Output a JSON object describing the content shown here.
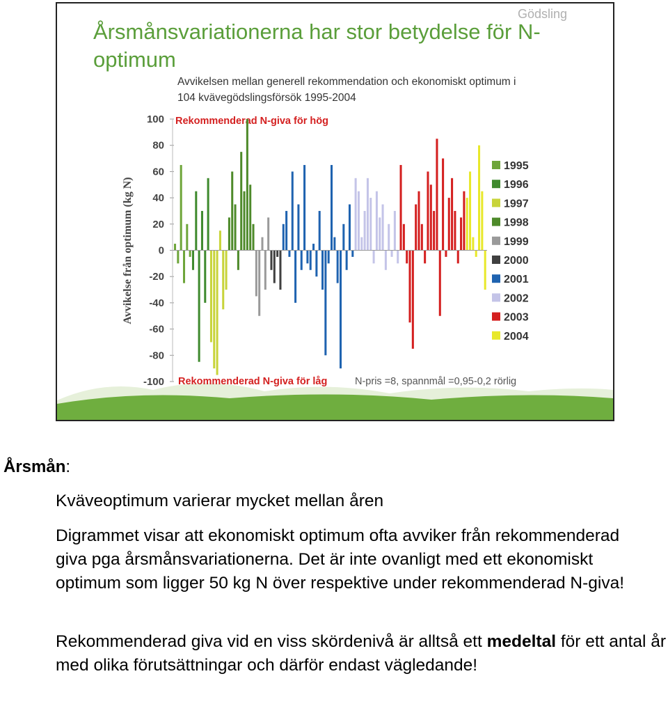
{
  "header": "Gödsling",
  "chart_data": {
    "type": "bar",
    "title": "Årsmånsvariationerna har stor betydelse för N-optimum",
    "subtitle": "Avvikelsen mellan generell rekommendation och ekonomiskt optimum i 104 kvävegödslingsförsök 1995-2004",
    "y_label": "Avvikelse från optimum (kg N)",
    "annotations": [
      "Rekommenderad N-giva för hög",
      "Rekommenderad N-giva för låg",
      "N-pris =8, spannmål =0,95-0,2 rörlig"
    ],
    "ylim": [
      -100,
      100
    ],
    "yticks": [
      -100,
      -80,
      -60,
      -40,
      -20,
      0,
      20,
      40,
      60,
      80,
      100
    ],
    "series": [
      {
        "name": "1995",
        "color": "#6ea53a",
        "values": [
          5,
          -10,
          65,
          -25,
          20,
          -5
        ]
      },
      {
        "name": "1996",
        "color": "#3f8a2e",
        "values": [
          -15,
          45,
          -85,
          30,
          -40,
          55
        ]
      },
      {
        "name": "1997",
        "color": "#c8d43a",
        "values": [
          -70,
          -90,
          -95,
          15,
          -45,
          -30
        ]
      },
      {
        "name": "1998",
        "color": "#4e8a2a",
        "values": [
          25,
          60,
          35,
          -15,
          75,
          45,
          100,
          50,
          20
        ]
      },
      {
        "name": "1999",
        "color": "#9a9a9a",
        "values": [
          -35,
          -50,
          10,
          -30,
          25
        ]
      },
      {
        "name": "2000",
        "color": "#404040",
        "values": [
          -15,
          -25,
          -5,
          -30
        ]
      },
      {
        "name": "2001",
        "color": "#1f63b0",
        "values": [
          20,
          30,
          -5,
          60,
          -40,
          35,
          -15,
          65,
          -10,
          -15,
          5,
          -20,
          30,
          -30,
          -80,
          -10,
          65,
          10,
          -25,
          -90,
          20,
          -15,
          35,
          -5
        ]
      },
      {
        "name": "2002",
        "color": "#c4c4e8",
        "values": [
          55,
          45,
          10,
          30,
          55,
          40,
          -10,
          45,
          25,
          35,
          -15,
          20,
          -5,
          30,
          -10
        ]
      },
      {
        "name": "2003",
        "color": "#d41f1f",
        "values": [
          65,
          20,
          -10,
          -55,
          -75,
          35,
          45,
          20,
          -10,
          60,
          50,
          30,
          85,
          -50,
          70,
          -5,
          40,
          55,
          30,
          -10,
          25,
          45
        ]
      },
      {
        "name": "2004",
        "color": "#e8e82a",
        "values": [
          40,
          60,
          10,
          -5,
          80,
          45,
          -30
        ]
      }
    ]
  },
  "notes": {
    "heading": "Årsmån",
    "heading_suffix": ":",
    "paragraphs": [
      [
        "Kväveoptimum varierar mycket mellan åren"
      ],
      [
        "Digrammet visar att ekonomiskt optimum ofta avviker från rekommenderad giva pga årsmånsvariationerna. Det är inte ovanligt med ett ekonomiskt optimum som ligger 50 kg N över respektive under rekommenderad N-giva!"
      ],
      [
        "Rekommenderad giva vid en viss skördenivå är alltså ett ",
        "medeltal",
        " för ett antal år med olika förutsättningar och därför endast vägledande!"
      ]
    ]
  }
}
